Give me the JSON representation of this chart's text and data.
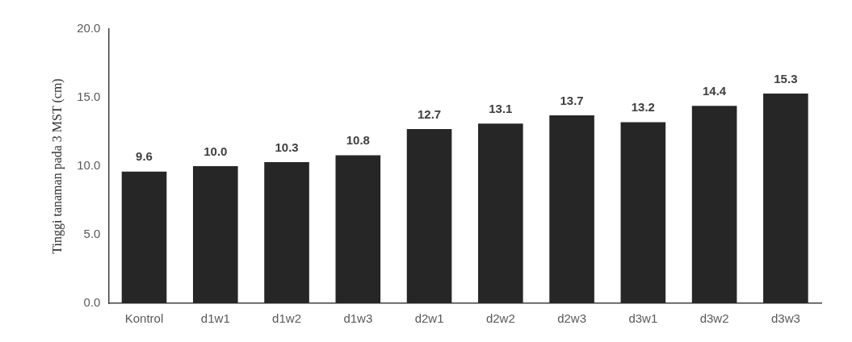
{
  "chart_data": {
    "type": "bar",
    "ylabel": "Tinggi tanaman pada 3 MST (cm)",
    "categories": [
      "Kontrol",
      "d1w1",
      "d1w2",
      "d1w3",
      "d2w1",
      "d2w2",
      "d2w3",
      "d3w1",
      "d3w2",
      "d3w3"
    ],
    "values": [
      9.6,
      10.0,
      10.3,
      10.8,
      12.7,
      13.1,
      13.7,
      13.2,
      14.4,
      15.3
    ],
    "color": "#262626",
    "ylim": [
      0,
      20
    ],
    "yticks": [
      {
        "value": 0,
        "label": "0.0"
      },
      {
        "value": 5,
        "label": "5.0"
      },
      {
        "value": 10,
        "label": "10.0"
      },
      {
        "value": 15,
        "label": "15.0"
      },
      {
        "value": 20,
        "label": "20.0"
      }
    ],
    "value_labels": [
      "9.6",
      "10.0",
      "10.3",
      "10.8",
      "12.7",
      "13.1",
      "13.7",
      "13.2",
      "14.4",
      "15.3"
    ],
    "grid": false,
    "legend": false
  }
}
